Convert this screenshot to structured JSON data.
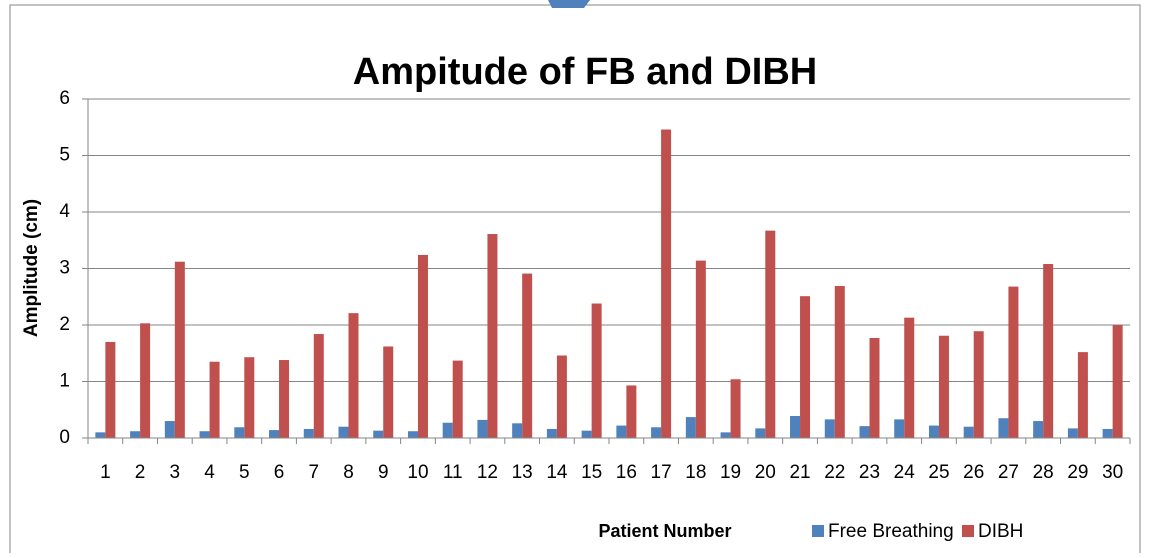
{
  "chart_data": {
    "type": "bar",
    "title": "Ampitude of FB and DIBH",
    "x_label": "Patient Number",
    "y_label": "Amplitude (cm)",
    "categories": [
      "1",
      "2",
      "3",
      "4",
      "5",
      "6",
      "7",
      "8",
      "9",
      "10",
      "11",
      "12",
      "13",
      "14",
      "15",
      "16",
      "17",
      "18",
      "19",
      "20",
      "21",
      "22",
      "23",
      "24",
      "25",
      "26",
      "27",
      "28",
      "29",
      "30"
    ],
    "series": [
      {
        "name": "Free Breathing",
        "color": "#4f81bd",
        "values": [
          0.1,
          0.12,
          0.3,
          0.12,
          0.19,
          0.14,
          0.16,
          0.2,
          0.13,
          0.12,
          0.27,
          0.32,
          0.26,
          0.16,
          0.13,
          0.22,
          0.19,
          0.37,
          0.1,
          0.17,
          0.39,
          0.33,
          0.21,
          0.33,
          0.22,
          0.2,
          0.35,
          0.3,
          0.17,
          0.16
        ]
      },
      {
        "name": "DIBH",
        "color": "#c0504d",
        "values": [
          1.7,
          2.03,
          3.12,
          1.35,
          1.43,
          1.38,
          1.84,
          2.21,
          1.62,
          3.24,
          1.37,
          3.61,
          2.91,
          1.46,
          2.38,
          0.93,
          5.46,
          3.14,
          1.04,
          3.67,
          2.51,
          2.69,
          1.77,
          2.13,
          1.81,
          1.89,
          2.68,
          3.08,
          1.52,
          2.0
        ]
      }
    ],
    "ylim": [
      0,
      6
    ],
    "yticks": [
      0,
      1,
      2,
      3,
      4,
      5,
      6
    ],
    "grid": true,
    "legend": "bottom"
  }
}
